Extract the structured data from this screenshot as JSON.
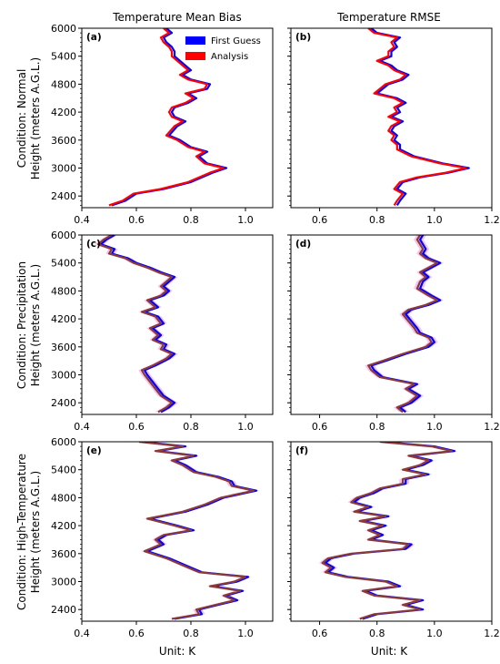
{
  "figure": {
    "col_titles": [
      "Temperature Mean Bias",
      "Temperature RMSE"
    ],
    "row_labels": [
      [
        "Condition: Normal",
        "Height (meters A.G.L.)"
      ],
      [
        "Condition: Precipitation",
        "Height (meters A.G.L.)"
      ],
      [
        "Condition: High-Temperature",
        "Height (meters A.G.L.)"
      ]
    ],
    "xlabel": "Unit: K"
  },
  "legend": {
    "first_guess": "First Guess",
    "analysis": "Analysis"
  },
  "colors": {
    "first_guess": "#0000ff",
    "analysis": "#ff0000",
    "overlap": "#8b3a3a",
    "shade": "#f2c4ec"
  },
  "chart_data": [
    {
      "type": "line",
      "panel": "(a)",
      "title": "Temperature Mean Bias",
      "ylabel": "Height (meters A.G.L.)",
      "xlim": [
        0.4,
        1.1
      ],
      "ylim": [
        2150,
        6000
      ],
      "xticks": [
        "0.4",
        "0.6",
        "0.8",
        "1.0"
      ],
      "yticks": [
        "2400",
        "3000",
        "3600",
        "4200",
        "4800",
        "5400",
        "6000"
      ],
      "y": [
        2200,
        2300,
        2450,
        2550,
        2700,
        2900,
        3000,
        3100,
        3250,
        3350,
        3450,
        3600,
        3700,
        3900,
        4000,
        4100,
        4200,
        4300,
        4400,
        4500,
        4600,
        4700,
        4800,
        4900,
        5000,
        5100,
        5200,
        5300,
        5400,
        5500,
        5600,
        5700,
        5800,
        5900,
        6000
      ],
      "series": [
        {
          "name": "First Guess",
          "values": [
            0.51,
            0.56,
            0.6,
            0.7,
            0.8,
            0.88,
            0.93,
            0.86,
            0.83,
            0.86,
            0.8,
            0.76,
            0.72,
            0.75,
            0.78,
            0.74,
            0.73,
            0.74,
            0.79,
            0.82,
            0.79,
            0.86,
            0.87,
            0.8,
            0.77,
            0.8,
            0.78,
            0.76,
            0.74,
            0.74,
            0.73,
            0.71,
            0.7,
            0.73,
            0.71
          ]
        },
        {
          "name": "Analysis",
          "values": [
            0.5,
            0.55,
            0.59,
            0.69,
            0.79,
            0.87,
            0.92,
            0.85,
            0.82,
            0.85,
            0.79,
            0.75,
            0.71,
            0.74,
            0.77,
            0.73,
            0.72,
            0.73,
            0.78,
            0.81,
            0.78,
            0.85,
            0.86,
            0.79,
            0.76,
            0.79,
            0.77,
            0.75,
            0.73,
            0.73,
            0.72,
            0.7,
            0.69,
            0.72,
            0.7
          ]
        }
      ]
    },
    {
      "type": "line",
      "panel": "(b)",
      "title": "Temperature RMSE",
      "xlim": [
        0.5,
        1.2
      ],
      "ylim": [
        2150,
        6000
      ],
      "xticks": [
        "0.6",
        "0.8",
        "1.0",
        "1.2"
      ],
      "yticks": [
        "2400",
        "3000",
        "3600",
        "4200",
        "4800",
        "5400",
        "6000"
      ],
      "y": [
        2200,
        2300,
        2450,
        2550,
        2700,
        2800,
        2900,
        3000,
        3100,
        3250,
        3400,
        3500,
        3600,
        3700,
        3800,
        3900,
        4000,
        4100,
        4200,
        4300,
        4400,
        4500,
        4600,
        4700,
        4800,
        4900,
        5000,
        5100,
        5200,
        5300,
        5400,
        5500,
        5600,
        5700,
        5800,
        5900,
        6000
      ],
      "series": [
        {
          "name": "First Guess",
          "values": [
            0.87,
            0.88,
            0.9,
            0.87,
            0.89,
            0.95,
            1.05,
            1.12,
            1.03,
            0.93,
            0.88,
            0.88,
            0.86,
            0.87,
            0.85,
            0.86,
            0.89,
            0.85,
            0.88,
            0.87,
            0.9,
            0.87,
            0.8,
            0.82,
            0.84,
            0.89,
            0.91,
            0.87,
            0.85,
            0.81,
            0.85,
            0.85,
            0.87,
            0.86,
            0.88,
            0.8,
            0.78
          ]
        },
        {
          "name": "Analysis",
          "values": [
            0.86,
            0.87,
            0.89,
            0.86,
            0.88,
            0.94,
            1.04,
            1.11,
            1.02,
            0.92,
            0.87,
            0.87,
            0.85,
            0.86,
            0.84,
            0.85,
            0.88,
            0.84,
            0.87,
            0.86,
            0.89,
            0.86,
            0.79,
            0.81,
            0.83,
            0.88,
            0.9,
            0.86,
            0.84,
            0.8,
            0.84,
            0.84,
            0.86,
            0.85,
            0.87,
            0.79,
            0.77
          ]
        }
      ]
    },
    {
      "type": "line",
      "panel": "(c)",
      "ylabel": "Height (meters A.G.L.)",
      "xlim": [
        0.4,
        1.1
      ],
      "ylim": [
        2150,
        6000
      ],
      "xticks": [
        "0.4",
        "0.6",
        "0.8",
        "1.0"
      ],
      "yticks": [
        "2400",
        "3000",
        "3600",
        "4200",
        "4800",
        "5400",
        "6000"
      ],
      "y": [
        2200,
        2300,
        2400,
        2550,
        2700,
        2850,
        3000,
        3100,
        3200,
        3350,
        3450,
        3550,
        3650,
        3750,
        3850,
        4000,
        4100,
        4250,
        4350,
        4450,
        4600,
        4700,
        4800,
        4900,
        5000,
        5100,
        5200,
        5300,
        5400,
        5500,
        5600,
        5700,
        5800,
        5900,
        6000
      ],
      "series": [
        {
          "name": "First Guess",
          "values": [
            0.69,
            0.72,
            0.74,
            0.7,
            0.68,
            0.66,
            0.64,
            0.63,
            0.67,
            0.72,
            0.74,
            0.7,
            0.71,
            0.67,
            0.69,
            0.66,
            0.7,
            0.68,
            0.63,
            0.68,
            0.65,
            0.7,
            0.72,
            0.7,
            0.72,
            0.74,
            0.69,
            0.65,
            0.6,
            0.57,
            0.51,
            0.52,
            0.47,
            0.49,
            0.52
          ]
        },
        {
          "name": "Analysis",
          "values": [
            0.68,
            0.71,
            0.73,
            0.69,
            0.67,
            0.65,
            0.63,
            0.62,
            0.66,
            0.71,
            0.73,
            0.69,
            0.7,
            0.66,
            0.68,
            0.65,
            0.69,
            0.67,
            0.62,
            0.67,
            0.64,
            0.69,
            0.71,
            0.69,
            0.71,
            0.73,
            0.68,
            0.64,
            0.59,
            0.56,
            0.5,
            0.51,
            0.46,
            0.48,
            0.51
          ]
        }
      ]
    },
    {
      "type": "line",
      "panel": "(d)",
      "xlim": [
        0.5,
        1.2
      ],
      "ylim": [
        2150,
        6000
      ],
      "xticks": [
        "0.6",
        "0.8",
        "1.0",
        "1.2"
      ],
      "yticks": [
        "2400",
        "3000",
        "3600",
        "4200",
        "4800",
        "5400",
        "6000"
      ],
      "y": [
        2200,
        2300,
        2400,
        2550,
        2700,
        2800,
        2950,
        3100,
        3200,
        3300,
        3450,
        3600,
        3700,
        3800,
        3900,
        4000,
        4150,
        4300,
        4400,
        4500,
        4600,
        4700,
        4850,
        5000,
        5100,
        5200,
        5300,
        5400,
        5500,
        5600,
        5700,
        5800,
        5900,
        6000
      ],
      "series": [
        {
          "name": "First Guess",
          "values": [
            0.9,
            0.88,
            0.92,
            0.95,
            0.91,
            0.94,
            0.82,
            0.79,
            0.78,
            0.83,
            0.9,
            0.98,
            1.0,
            0.99,
            0.95,
            0.94,
            0.92,
            0.9,
            0.92,
            0.98,
            1.02,
            0.99,
            0.95,
            0.96,
            0.98,
            0.96,
            0.99,
            1.02,
            0.98,
            0.96,
            0.97,
            0.96,
            0.95,
            0.96
          ]
        },
        {
          "name": "Analysis",
          "values": [
            0.89,
            0.87,
            0.91,
            0.94,
            0.9,
            0.93,
            0.81,
            0.78,
            0.77,
            0.82,
            0.89,
            0.97,
            0.99,
            0.98,
            0.94,
            0.93,
            0.91,
            0.89,
            0.91,
            0.97,
            1.01,
            0.98,
            0.94,
            0.95,
            0.97,
            0.95,
            0.98,
            1.01,
            0.97,
            0.95,
            0.96,
            0.95,
            0.94,
            0.95
          ]
        }
      ]
    },
    {
      "type": "line",
      "panel": "(e)",
      "ylabel": "Height (meters A.G.L.)",
      "xlim": [
        0.4,
        1.1
      ],
      "ylim": [
        2150,
        6000
      ],
      "xticks": [
        "0.4",
        "0.6",
        "0.8",
        "1.0"
      ],
      "yticks": [
        "2400",
        "3000",
        "3600",
        "4200",
        "4800",
        "5400",
        "6000"
      ],
      "y": [
        2200,
        2300,
        2400,
        2500,
        2600,
        2700,
        2800,
        2900,
        3000,
        3100,
        3200,
        3350,
        3500,
        3650,
        3800,
        3900,
        4000,
        4100,
        4200,
        4350,
        4500,
        4650,
        4800,
        4950,
        5050,
        5150,
        5250,
        5350,
        5500,
        5600,
        5700,
        5800,
        5900,
        6000
      ],
      "series": [
        {
          "name": "First Guess",
          "values": [
            0.74,
            0.84,
            0.83,
            0.9,
            0.97,
            0.93,
            0.99,
            0.88,
            0.97,
            1.01,
            0.84,
            0.78,
            0.72,
            0.64,
            0.7,
            0.68,
            0.71,
            0.81,
            0.75,
            0.65,
            0.78,
            0.86,
            0.92,
            1.04,
            0.96,
            0.95,
            0.9,
            0.82,
            0.78,
            0.74,
            0.82,
            0.68,
            0.78,
            0.62
          ]
        },
        {
          "name": "Analysis",
          "values": [
            0.73,
            0.83,
            0.82,
            0.89,
            0.96,
            0.92,
            0.98,
            0.87,
            0.96,
            1.0,
            0.83,
            0.77,
            0.71,
            0.63,
            0.69,
            0.67,
            0.7,
            0.8,
            0.74,
            0.64,
            0.77,
            0.85,
            0.91,
            1.03,
            0.95,
            0.94,
            0.89,
            0.81,
            0.77,
            0.73,
            0.81,
            0.67,
            0.77,
            0.61
          ]
        }
      ]
    },
    {
      "type": "line",
      "panel": "(f)",
      "xlim": [
        0.5,
        1.2
      ],
      "ylim": [
        2150,
        6000
      ],
      "xticks": [
        "0.6",
        "0.8",
        "1.0",
        "1.2"
      ],
      "yticks": [
        "2400",
        "3000",
        "3600",
        "4200",
        "4800",
        "5400",
        "6000"
      ],
      "y": [
        2200,
        2300,
        2400,
        2500,
        2600,
        2700,
        2800,
        2900,
        3000,
        3100,
        3200,
        3300,
        3400,
        3500,
        3600,
        3700,
        3800,
        3900,
        4000,
        4100,
        4200,
        4300,
        4400,
        4500,
        4600,
        4700,
        4800,
        4900,
        5000,
        5100,
        5200,
        5300,
        5400,
        5500,
        5600,
        5700,
        5800,
        5900,
        6000
      ],
      "series": [
        {
          "name": "First Guess",
          "values": [
            0.75,
            0.8,
            0.96,
            0.9,
            0.96,
            0.8,
            0.76,
            0.88,
            0.84,
            0.7,
            0.63,
            0.65,
            0.62,
            0.64,
            0.72,
            0.9,
            0.92,
            0.78,
            0.82,
            0.78,
            0.83,
            0.75,
            0.84,
            0.73,
            0.78,
            0.72,
            0.74,
            0.79,
            0.82,
            0.9,
            0.9,
            0.98,
            0.9,
            0.96,
            0.99,
            0.92,
            1.07,
            1.0,
            0.82
          ]
        },
        {
          "name": "Analysis",
          "values": [
            0.74,
            0.79,
            0.95,
            0.89,
            0.95,
            0.79,
            0.75,
            0.87,
            0.83,
            0.69,
            0.62,
            0.64,
            0.61,
            0.63,
            0.71,
            0.89,
            0.91,
            0.77,
            0.81,
            0.77,
            0.82,
            0.74,
            0.83,
            0.72,
            0.77,
            0.71,
            0.73,
            0.78,
            0.81,
            0.89,
            0.89,
            0.97,
            0.89,
            0.95,
            0.98,
            0.91,
            1.06,
            0.99,
            0.81
          ]
        }
      ]
    }
  ]
}
